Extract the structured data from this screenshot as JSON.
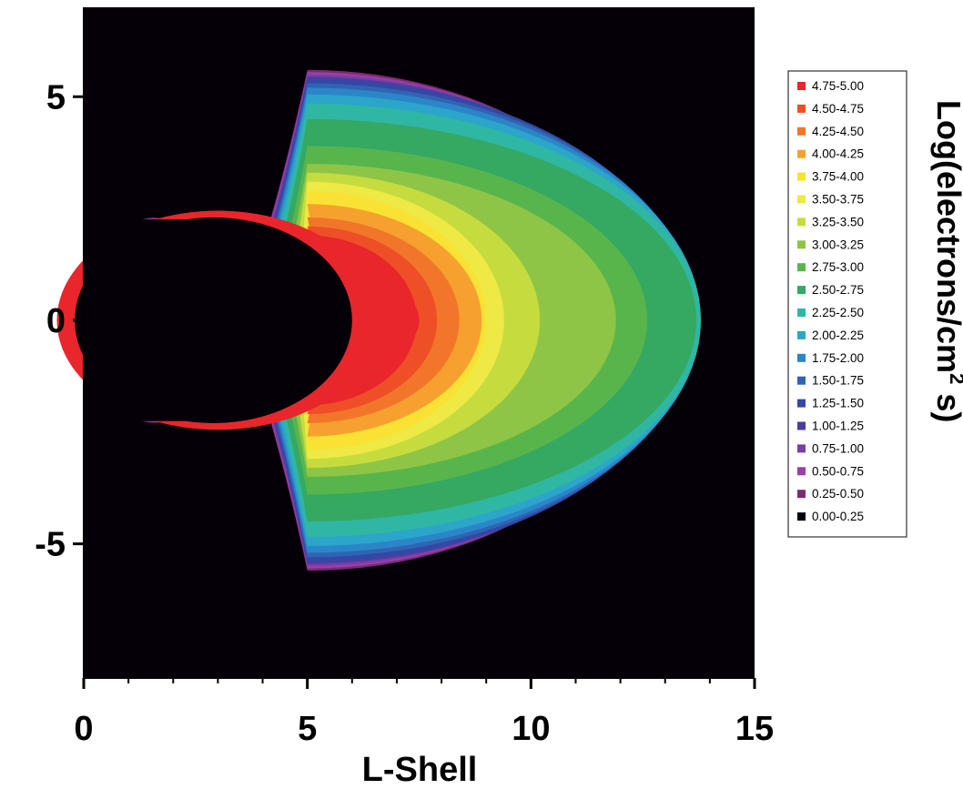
{
  "chart_data": {
    "type": "heatmap",
    "title": "",
    "xlabel": "L-Shell",
    "ylabel": "",
    "xlim": [
      0,
      15
    ],
    "ylim": [
      -8,
      7
    ],
    "x_ticks": [
      "0",
      "5",
      "10",
      "15"
    ],
    "y_ticks": [
      "5",
      "0",
      "-5"
    ],
    "grid": false,
    "background_color": "#050008",
    "colorbar": {
      "title_main": "Log(electrons/cm",
      "title_sup": "2",
      "title_tail": " s)",
      "placement": "right",
      "bins": [
        {
          "label": "4.75-5.00",
          "color": "#e8262b"
        },
        {
          "label": "4.50-4.75",
          "color": "#ee4f27"
        },
        {
          "label": "4.25-4.50",
          "color": "#f2762a"
        },
        {
          "label": "4.00-4.25",
          "color": "#f6a12f"
        },
        {
          "label": "3.75-4.00",
          "color": "#f9e233"
        },
        {
          "label": "3.50-3.75",
          "color": "#eee944"
        },
        {
          "label": "3.25-3.50",
          "color": "#c6dc3e"
        },
        {
          "label": "3.00-3.25",
          "color": "#8fc546"
        },
        {
          "label": "2.75-3.00",
          "color": "#58b54c"
        },
        {
          "label": "2.50-2.75",
          "color": "#35a862"
        },
        {
          "label": "2.25-2.50",
          "color": "#2fb7a4"
        },
        {
          "label": "2.00-2.25",
          "color": "#2ba5c9"
        },
        {
          "label": "1.75-2.00",
          "color": "#2b86c9"
        },
        {
          "label": "1.50-1.75",
          "color": "#3064b3"
        },
        {
          "label": "1.25-1.50",
          "color": "#3348a5"
        },
        {
          "label": "1.00-1.25",
          "color": "#4b3ea1"
        },
        {
          "label": "0.75-1.00",
          "color": "#7a3ea5"
        },
        {
          "label": "0.50-0.75",
          "color": "#9c3ea8"
        },
        {
          "label": "0.25-0.50",
          "color": "#7a2a73"
        },
        {
          "label": "0.00-0.25",
          "color": "#050008"
        }
      ]
    },
    "bands": [
      {
        "range": "0.25-0.50",
        "front_x": 12.9,
        "inner_x": 0.25,
        "half_height": 5.6,
        "wing_spread": 2.2
      },
      {
        "range": "0.50-0.75",
        "front_x": 13.0,
        "inner_x": 0.3,
        "half_height": 5.55,
        "wing_spread": 2.1
      },
      {
        "range": "0.75-1.00",
        "front_x": 13.2,
        "inner_x": 0.4,
        "half_height": 5.5,
        "wing_spread": 1.9
      },
      {
        "range": "1.00-1.25",
        "front_x": 13.4,
        "inner_x": 0.55,
        "half_height": 5.45,
        "wing_spread": 1.7
      },
      {
        "range": "1.25-1.50",
        "front_x": 13.6,
        "inner_x": 0.7,
        "half_height": 5.4,
        "wing_spread": 1.5
      },
      {
        "range": "1.50-1.75",
        "front_x": 13.7,
        "inner_x": 0.85,
        "half_height": 5.3,
        "wing_spread": 1.3
      },
      {
        "range": "1.75-2.00",
        "front_x": 13.75,
        "inner_x": 1.0,
        "half_height": 5.2,
        "wing_spread": 1.15
      },
      {
        "range": "2.00-2.25",
        "front_x": 13.8,
        "inner_x": 1.2,
        "half_height": 5.05,
        "wing_spread": 1.0
      },
      {
        "range": "2.25-2.50",
        "front_x": 13.8,
        "inner_x": 1.45,
        "half_height": 4.85,
        "wing_spread": 0.85
      },
      {
        "range": "2.50-2.75",
        "front_x": 13.7,
        "inner_x": 1.8,
        "half_height": 4.5,
        "wing_spread": 0.7
      },
      {
        "range": "2.75-3.00",
        "front_x": 12.6,
        "inner_x": 2.2,
        "half_height": 3.9,
        "wing_spread": 0.55
      },
      {
        "range": "3.00-3.25",
        "front_x": 11.9,
        "inner_x": 2.7,
        "half_height": 3.5,
        "wing_spread": 0.45
      },
      {
        "range": "3.25-3.50",
        "front_x": 10.2,
        "inner_x": 3.3,
        "half_height": 3.3,
        "wing_spread": 0.35
      },
      {
        "range": "3.50-3.75",
        "front_x": 9.4,
        "inner_x": 4.1,
        "half_height": 3.1,
        "wing_spread": 0.2
      },
      {
        "range": "3.75-4.00",
        "front_x": 9.0,
        "inner_x": 5.0,
        "half_height": 2.9,
        "wing_spread": 0.1
      },
      {
        "range": "4.00-4.25",
        "front_x": 8.9,
        "inner_x": 6.7,
        "half_height": 2.6,
        "wing_spread": 0.0
      },
      {
        "range": "4.25-4.50",
        "front_x": 8.4,
        "inner_x": 6.9,
        "half_height": 2.3,
        "wing_spread": 0.0
      },
      {
        "range": "4.50-4.75",
        "front_x": 7.9,
        "inner_x": 7.0,
        "half_height": 2.1,
        "wing_spread": 0.0
      },
      {
        "range": "4.75-5.00",
        "front_x": 7.45,
        "inner_x": 7.1,
        "half_height": 1.9,
        "wing_spread": 0.0
      }
    ],
    "inner_red_band": {
      "range": "4.75-5.00",
      "front_x": 6.6,
      "half_height": 2.45
    },
    "earth_cavity": {
      "x_max": 6.0,
      "half_height": 2.3
    },
    "slot_region": {
      "range": "3.75-4.00",
      "x_from": 6.0,
      "x_to": 7.0
    }
  }
}
